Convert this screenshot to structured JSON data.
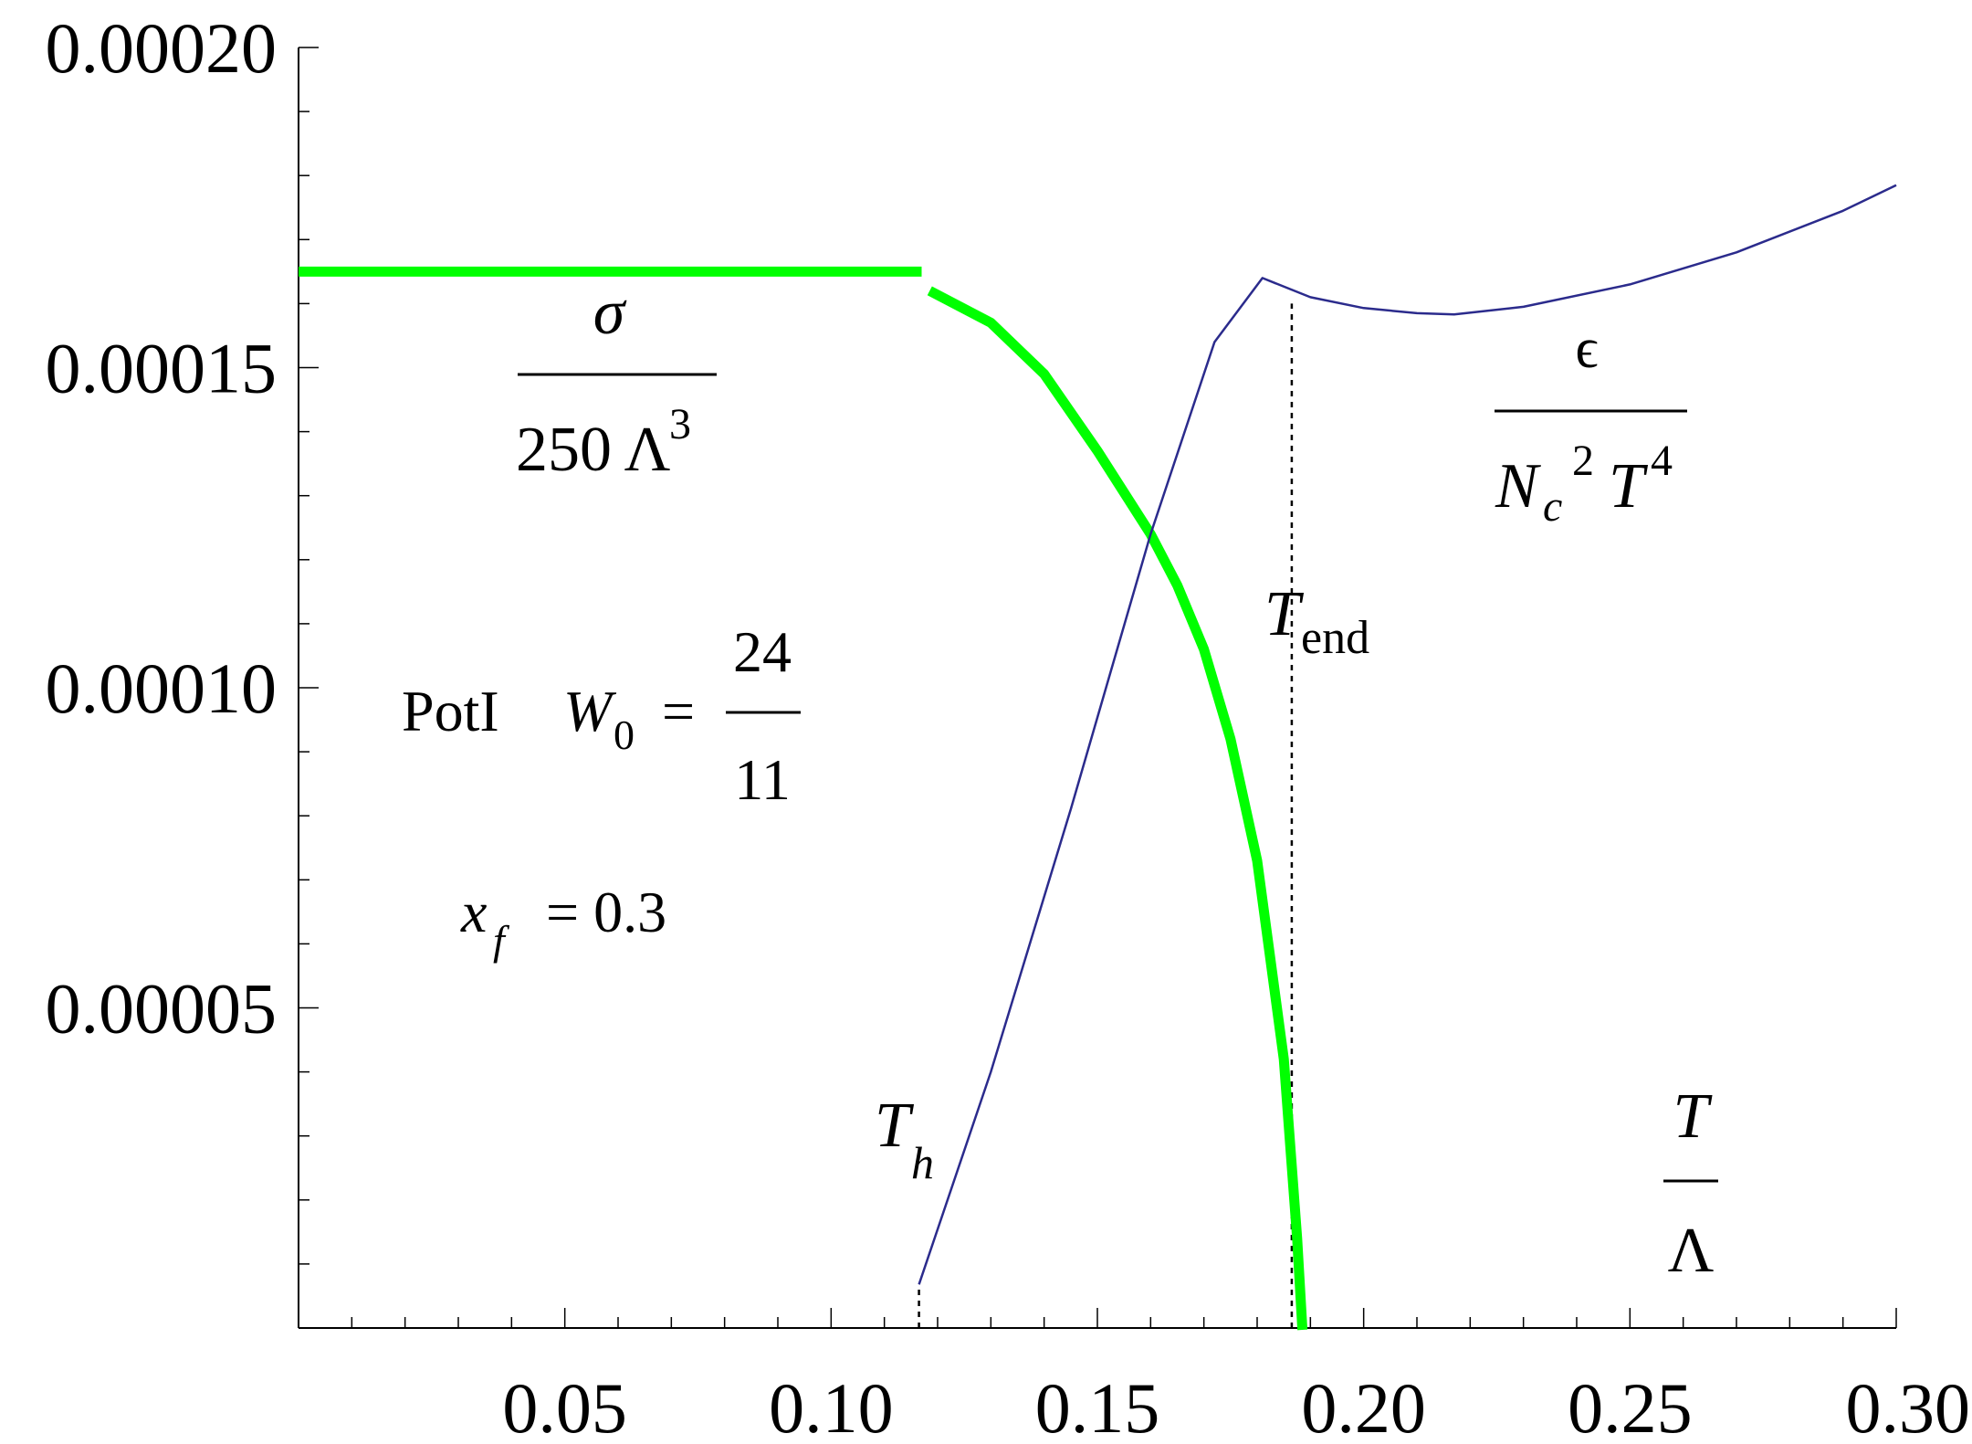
{
  "chart_data": {
    "type": "line",
    "xlim": [
      0.0,
      0.3
    ],
    "ylim": [
      0.0,
      0.0002
    ],
    "x_ticks": [
      "0.05",
      "0.10",
      "0.15",
      "0.20",
      "0.25",
      "0.30"
    ],
    "y_ticks": [
      "0.00005",
      "0.00010",
      "0.00015",
      "0.00020"
    ],
    "series": [
      {
        "color": "#00ff00",
        "segments": [
          [
            [
              0.0,
              0.000165
            ],
            [
              0.117,
              0.000165
            ]
          ],
          [
            [
              0.1185,
              0.000162
            ],
            [
              0.13,
              0.000157
            ],
            [
              0.14,
              0.000149
            ],
            [
              0.15,
              0.000137
            ],
            [
              0.16,
              0.000124
            ],
            [
              0.165,
              0.000116
            ],
            [
              0.17,
              0.000106
            ],
            [
              0.175,
              9.2e-05
            ],
            [
              0.18,
              7.3e-05
            ],
            [
              0.185,
              4.2e-05
            ],
            [
              0.1875,
              1.4e-05
            ],
            [
              0.1885,
              -1e-06
            ]
          ]
        ]
      },
      {
        "color": "#2b2b8c",
        "segments": [
          [
            [
              0.1165,
              6.8e-06
            ],
            [
              0.13,
              4e-05
            ],
            [
              0.145,
              8.1e-05
            ],
            [
              0.16,
              0.000124
            ],
            [
              0.172,
              0.000154
            ],
            [
              0.181,
              0.000164
            ],
            [
              0.19,
              0.000161
            ],
            [
              0.2,
              0.0001593
            ],
            [
              0.21,
              0.0001585
            ],
            [
              0.217,
              0.0001583
            ],
            [
              0.23,
              0.0001595
            ],
            [
              0.25,
              0.000163
            ],
            [
              0.27,
              0.000168
            ],
            [
              0.29,
              0.0001745
            ],
            [
              0.3,
              0.0001785
            ]
          ]
        ]
      }
    ],
    "markers": [
      {
        "x": 0.1165,
        "y_from": 0.0,
        "y_to": 6.8e-06
      },
      {
        "x": 0.1865,
        "y_from": 0.0,
        "y_to": 0.00016
      }
    ]
  },
  "annotations": {
    "sigma_num": "σ",
    "sigma_den": "250 Λ",
    "sigma_den_sup": "3",
    "eps_num": "ϵ",
    "eps_den_N": "N",
    "eps_den_c": "c",
    "eps_den_sq": "2",
    "eps_den_T": "T",
    "eps_den_4": "4",
    "potl": "PotI",
    "w0_W": "W",
    "w0_sub": "0",
    "w0_eq": "=",
    "w0_num": "24",
    "w0_den": "11",
    "xf_x": "x",
    "xf_sub": "f",
    "xf_eq": "= 0.3",
    "th_T": "T",
    "th_sub": "h",
    "tend_T": "T",
    "tend_sub": "end",
    "xlabel_num": "T",
    "xlabel_den": "Λ"
  }
}
